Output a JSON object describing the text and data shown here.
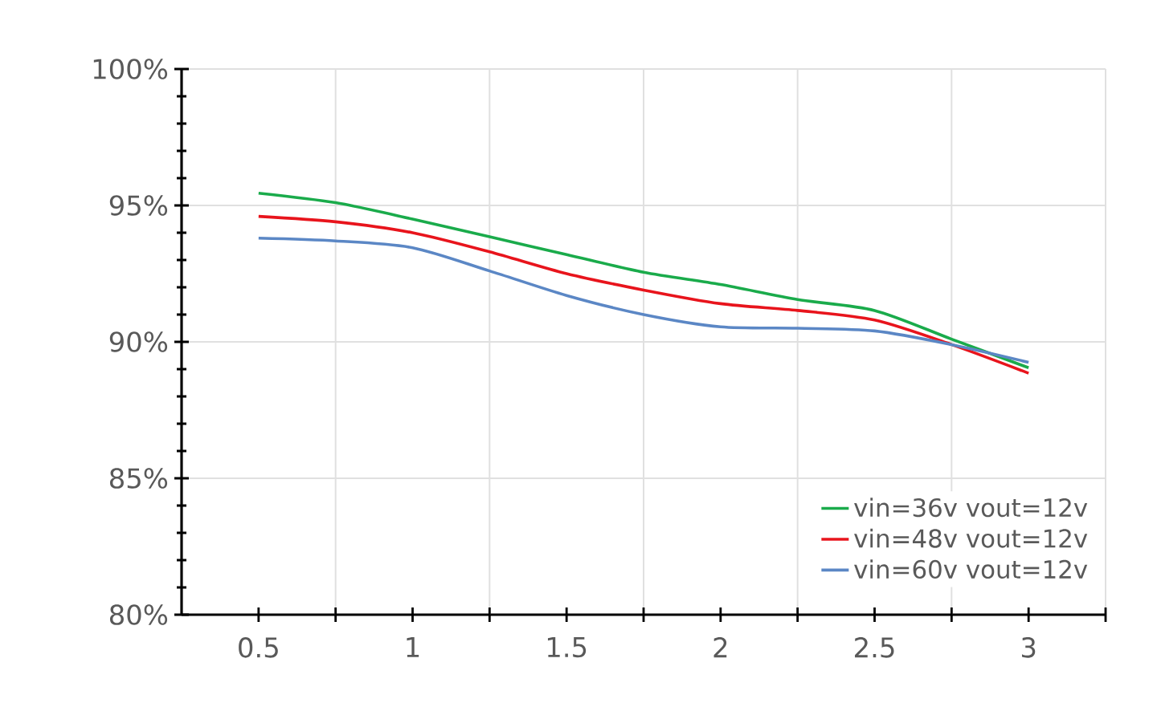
{
  "chart_data": {
    "type": "line",
    "xlim": [
      0.25,
      3.25
    ],
    "ylim": [
      80,
      100
    ],
    "xticks": [
      {
        "value": 0.5,
        "label": "0.5"
      },
      {
        "value": 1,
        "label": "1"
      },
      {
        "value": 1.5,
        "label": "1.5"
      },
      {
        "value": 2,
        "label": "2"
      },
      {
        "value": 2.5,
        "label": "2.5"
      },
      {
        "value": 3,
        "label": "3"
      },
      {
        "value": 0.75,
        "label": null
      },
      {
        "value": 1.25,
        "label": null
      },
      {
        "value": 1.75,
        "label": null
      },
      {
        "value": 2.25,
        "label": null
      },
      {
        "value": 2.75,
        "label": null
      },
      {
        "value": 3.25,
        "label": null
      }
    ],
    "yticks": [
      {
        "value": 80,
        "label": "80%"
      },
      {
        "value": 85,
        "label": "85%"
      },
      {
        "value": 90,
        "label": "90%"
      },
      {
        "value": 95,
        "label": "95%"
      },
      {
        "value": 100,
        "label": "100%"
      },
      {
        "value": 81,
        "label": null
      },
      {
        "value": 82,
        "label": null
      },
      {
        "value": 83,
        "label": null
      },
      {
        "value": 84,
        "label": null
      },
      {
        "value": 86,
        "label": null
      },
      {
        "value": 87,
        "label": null
      },
      {
        "value": 88,
        "label": null
      },
      {
        "value": 89,
        "label": null
      },
      {
        "value": 91,
        "label": null
      },
      {
        "value": 92,
        "label": null
      },
      {
        "value": 93,
        "label": null
      },
      {
        "value": 94,
        "label": null
      },
      {
        "value": 96,
        "label": null
      },
      {
        "value": 97,
        "label": null
      },
      {
        "value": 98,
        "label": null
      },
      {
        "value": 99,
        "label": null
      }
    ],
    "x": [
      0.5,
      0.75,
      1,
      1.25,
      1.5,
      1.75,
      2,
      2.25,
      2.5,
      2.75,
      3
    ],
    "series": [
      {
        "name": "vin=36v vout=12v",
        "color": "#1aab4b",
        "values": [
          95.45,
          95.1,
          94.5,
          93.85,
          93.2,
          92.55,
          92.1,
          91.55,
          91.15,
          90.1,
          89.05
        ]
      },
      {
        "name": "vin=48v vout=12v",
        "color": "#e8141c",
        "values": [
          94.6,
          94.4,
          94.0,
          93.3,
          92.5,
          91.9,
          91.4,
          91.15,
          90.8,
          89.9,
          88.85
        ]
      },
      {
        "name": "vin=60v vout=12v",
        "color": "#5b87c5",
        "values": [
          93.8,
          93.7,
          93.45,
          92.6,
          91.7,
          91.0,
          90.55,
          90.5,
          90.4,
          89.9,
          89.25
        ]
      }
    ],
    "grid": true,
    "legend": "bottom right",
    "marker": "none",
    "line_style": "solid"
  }
}
